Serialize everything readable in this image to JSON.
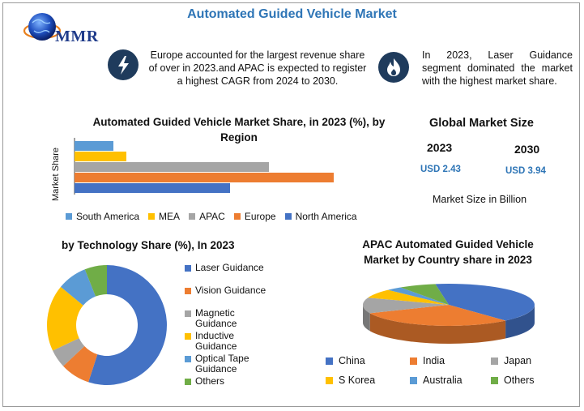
{
  "header": {
    "title": "Automated Guided Vehicle Market",
    "logo_text": "MMR"
  },
  "notes": {
    "left": "Europe accounted for the largest revenue share of over in 2023.and APAC is expected to register a highest CAGR from 2024 to 2030.",
    "right": "In 2023, Laser Guidance segment dominated the market with the highest market share."
  },
  "icons": {
    "left": "lightning-icon",
    "right": "flame-icon"
  },
  "global": {
    "title": "Global Market Size",
    "year_a": "2023",
    "year_b": "2030",
    "value_a": "USD 2.43",
    "value_b": "USD 3.94",
    "caption": "Market Size in Billion"
  },
  "colors": {
    "blue": "#4472c4",
    "orange": "#ed7d31",
    "gray": "#a5a5a5",
    "yellow": "#ffc000",
    "lightblue": "#5b9bd5",
    "green": "#70ad47",
    "title_blue": "#2e75b6"
  },
  "chart_data": [
    {
      "type": "bar",
      "orientation": "horizontal",
      "title": "Automated Guided Vehicle Market Share, in 2023 (%), by Region",
      "ylabel": "Market Share",
      "categories": [
        "South America",
        "MEA",
        "APAC",
        "Europe",
        "North America"
      ],
      "values": [
        6,
        8,
        30,
        40,
        24
      ],
      "xlim": [
        0,
        45
      ],
      "colors": [
        "#5b9bd5",
        "#ffc000",
        "#a5a5a5",
        "#ed7d31",
        "#4472c4"
      ],
      "legend": "bottom",
      "grid": false
    },
    {
      "type": "pie",
      "style": "donut",
      "title": "by Technology Share (%), In 2023",
      "categories": [
        "Laser Guidance",
        "Vision Guidance",
        "Magnetic Guidance",
        "Inductive Guidance",
        "Optical Tape Guidance",
        "Others"
      ],
      "legend_lines": [
        [
          "Laser Guidance"
        ],
        [
          "Vision Guidance"
        ],
        [
          "Magnetic",
          "Guidance"
        ],
        [
          "Inductive",
          "Guidance"
        ],
        [
          "Optical Tape",
          "Guidance"
        ],
        [
          "Others"
        ]
      ],
      "values": [
        55,
        8,
        5,
        18,
        8,
        6
      ],
      "colors": [
        "#4472c4",
        "#ed7d31",
        "#a5a5a5",
        "#ffc000",
        "#5b9bd5",
        "#70ad47"
      ],
      "legend": "right"
    },
    {
      "type": "pie",
      "style": "3d",
      "title": "APAC Automated Guided Vehicle Market by Country share in 2023",
      "categories": [
        "China",
        "India",
        "Japan",
        "S Korea",
        "Australia",
        "Others"
      ],
      "values": [
        41,
        30,
        12,
        7,
        3,
        7
      ],
      "colors": [
        "#4472c4",
        "#ed7d31",
        "#a5a5a5",
        "#ffc000",
        "#5b9bd5",
        "#70ad47"
      ],
      "legend": "bottom"
    }
  ]
}
